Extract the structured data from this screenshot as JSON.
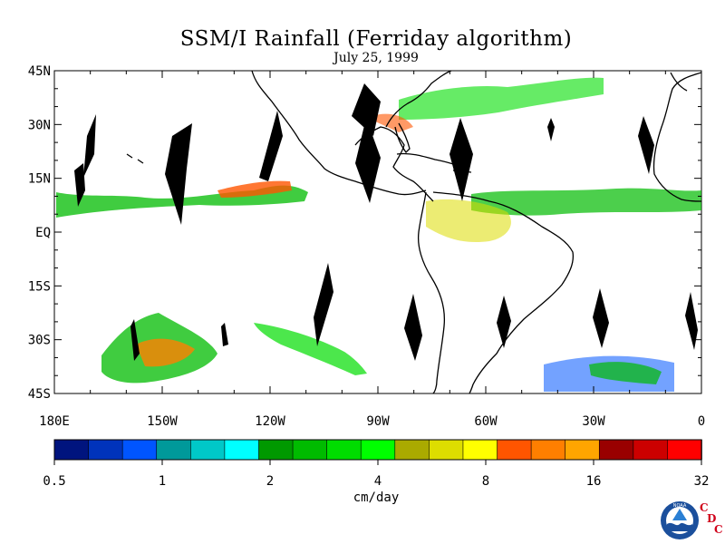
{
  "title": "SSM/I Rainfall (Ferriday algorithm)",
  "subtitle": "July 25, 1999",
  "units": "cm/day",
  "logo_text": "NOAA",
  "credit": [
    "C",
    "D",
    "C"
  ],
  "map": {
    "lon_range": [
      -180,
      0
    ],
    "lat_range": [
      -45,
      45
    ],
    "lat_labels": [
      "45N",
      "30N",
      "15N",
      "EQ",
      "15S",
      "30S",
      "45S"
    ],
    "lon_labels": [
      "180E",
      "150W",
      "120W",
      "90W",
      "60W",
      "30W",
      "0"
    ],
    "lat_ticks": [
      45,
      30,
      15,
      0,
      -15,
      -30,
      -45
    ],
    "lon_ticks": [
      -180,
      -150,
      -120,
      -90,
      -60,
      -30,
      0
    ],
    "missing_swath_color": "#000000",
    "coastline_color": "#000000"
  },
  "colorbar": {
    "colors": [
      "#00147e",
      "#0033bb",
      "#0055ff",
      "#00999a",
      "#00c8c8",
      "#00ffff",
      "#009900",
      "#00bb00",
      "#00dd00",
      "#00ff00",
      "#aaaa00",
      "#dddd00",
      "#ffff00",
      "#ff5500",
      "#ff7f00",
      "#ffa500",
      "#990000",
      "#cc0000",
      "#ff0000"
    ],
    "tick_labels": [
      "0.5",
      "1",
      "2",
      "4",
      "8",
      "16",
      "32"
    ]
  }
}
